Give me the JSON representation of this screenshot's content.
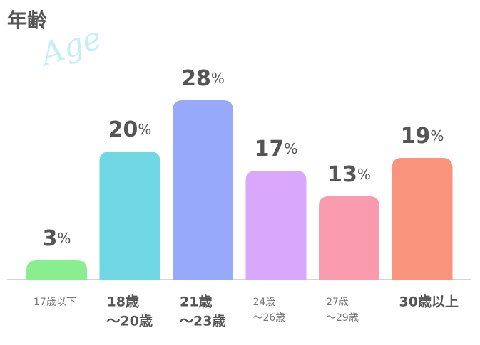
{
  "chart_data": {
    "type": "bar",
    "title": "年齢",
    "subtitle": "Age",
    "categories": [
      [
        "17歳以下"
      ],
      [
        "18歳",
        "〜20歳"
      ],
      [
        "21歳",
        "〜23歳"
      ],
      [
        "24歳",
        "〜26歳"
      ],
      [
        "27歳",
        "〜29歳"
      ],
      [
        "30歳以上"
      ]
    ],
    "highlight": [
      false,
      true,
      true,
      false,
      false,
      true
    ],
    "values": [
      3,
      20,
      28,
      17,
      13,
      19
    ],
    "value_labels": [
      "3%",
      "20%",
      "28%",
      "17%",
      "13%",
      "19%"
    ],
    "colors": [
      "#88ee90",
      "#6fd7e3",
      "#97a9fb",
      "#d9a7fb",
      "#f99aae",
      "#fa937b"
    ]
  }
}
